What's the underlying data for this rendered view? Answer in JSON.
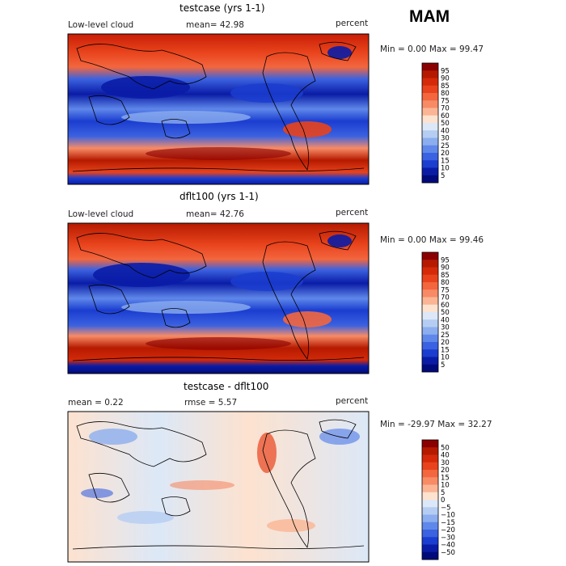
{
  "season": "MAM",
  "panels": [
    {
      "title": "testcase (yrs 1-1)",
      "left_label": "Low-level cloud",
      "mid_label": "mean=  42.98",
      "units": "percent",
      "minmax": "Min =   0.00 Max =  99.47",
      "colorbar": [
        "95",
        "90",
        "85",
        "80",
        "75",
        "70",
        "60",
        "50",
        "40",
        "30",
        "25",
        "20",
        "15",
        "10",
        "5"
      ],
      "colors": [
        "#8b0000",
        "#b51a00",
        "#d42a0a",
        "#e8431c",
        "#f3663e",
        "#f78b66",
        "#fbb594",
        "#fde2cf",
        "#dce8f7",
        "#b5cdf2",
        "#8caeef",
        "#5f88ea",
        "#3b62e0",
        "#1b3dd0",
        "#0a1ca6",
        "#000a7a"
      ]
    },
    {
      "title": "dflt100 (yrs 1-1)",
      "left_label": "Low-level cloud",
      "mid_label": "mean=  42.76",
      "units": "percent",
      "minmax": "Min =   0.00 Max =  99.46",
      "colorbar": [
        "95",
        "90",
        "85",
        "80",
        "75",
        "70",
        "60",
        "50",
        "40",
        "30",
        "25",
        "20",
        "15",
        "10",
        "5"
      ],
      "colors": [
        "#8b0000",
        "#b51a00",
        "#d42a0a",
        "#e8431c",
        "#f3663e",
        "#f78b66",
        "#fbb594",
        "#fde2cf",
        "#dce8f7",
        "#b5cdf2",
        "#8caeef",
        "#5f88ea",
        "#3b62e0",
        "#1b3dd0",
        "#0a1ca6",
        "#000a7a"
      ]
    },
    {
      "title": "testcase - dflt100",
      "left_label": "mean =   0.22",
      "mid_label": "rmse =   5.57",
      "units": "percent",
      "minmax": "Min = -29.97 Max =  32.27",
      "colorbar": [
        "50",
        "40",
        "30",
        "20",
        "15",
        "10",
        "5",
        "0",
        "−5",
        "−10",
        "−15",
        "−20",
        "−30",
        "−40",
        "−50"
      ],
      "colors": [
        "#8b0000",
        "#b51a00",
        "#d42a0a",
        "#e8431c",
        "#f3663e",
        "#f78b66",
        "#fbb594",
        "#fde2cf",
        "#dce8f7",
        "#b5cdf2",
        "#8caeef",
        "#5f88ea",
        "#3b62e0",
        "#1b3dd0",
        "#0a1ca6",
        "#000a7a"
      ]
    }
  ],
  "chart_data": [
    {
      "type": "heatmap",
      "title": "testcase (yrs 1-1)",
      "variable": "Low-level cloud",
      "units": "percent",
      "mean": 42.98,
      "min": 0.0,
      "max": 99.47,
      "levels": [
        5,
        10,
        15,
        20,
        25,
        30,
        40,
        50,
        60,
        70,
        75,
        80,
        85,
        90,
        95
      ]
    },
    {
      "type": "heatmap",
      "title": "dflt100 (yrs 1-1)",
      "variable": "Low-level cloud",
      "units": "percent",
      "mean": 42.76,
      "min": 0.0,
      "max": 99.46,
      "levels": [
        5,
        10,
        15,
        20,
        25,
        30,
        40,
        50,
        60,
        70,
        75,
        80,
        85,
        90,
        95
      ]
    },
    {
      "type": "heatmap",
      "title": "testcase - dflt100",
      "units": "percent",
      "mean": 0.22,
      "rmse": 5.57,
      "min": -29.97,
      "max": 32.27,
      "levels": [
        -50,
        -40,
        -30,
        -20,
        -15,
        -10,
        -5,
        0,
        5,
        10,
        15,
        20,
        30,
        40,
        50
      ]
    }
  ]
}
